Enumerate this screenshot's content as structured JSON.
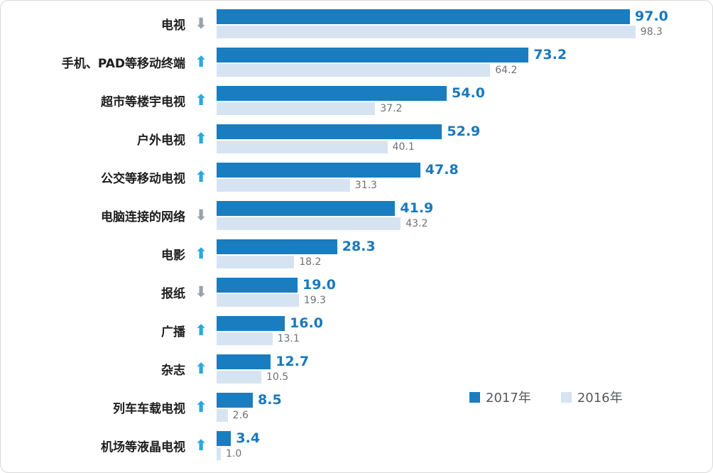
{
  "chart_data": {
    "type": "bar",
    "orientation": "horizontal",
    "title": "",
    "xlabel": "",
    "ylabel": "",
    "xlim": [
      0,
      100
    ],
    "grid": false,
    "legend": [
      "2017年",
      "2016年"
    ],
    "legend_position": "bottom-right",
    "categories": [
      "电视",
      "手机、PAD等移动终端",
      "超市等楼宇电视",
      "户外电视",
      "公交等移动电视",
      "电脑连接的网络",
      "电影",
      "报纸",
      "广播",
      "杂志",
      "列车车载电视",
      "机场等液晶电视"
    ],
    "series": [
      {
        "name": "2017年",
        "values": [
          97.0,
          73.2,
          54.0,
          52.9,
          47.8,
          41.9,
          28.3,
          19.0,
          16.0,
          12.7,
          8.5,
          3.4
        ]
      },
      {
        "name": "2016年",
        "values": [
          98.3,
          64.2,
          37.2,
          40.1,
          31.3,
          43.2,
          18.2,
          19.3,
          13.1,
          10.5,
          2.6,
          1.0
        ]
      }
    ],
    "trends": [
      "down",
      "up",
      "up",
      "up",
      "up",
      "down",
      "up",
      "down",
      "up",
      "up",
      "up",
      "up"
    ],
    "colors": {
      "bar_2017": "#1a7dc0",
      "bar_2016": "#d6e4f2",
      "value_2017_text": "#1878be",
      "value_2016_text": "#6d7075",
      "trend_up": "#2aa8df",
      "trend_down": "#9ba1a8"
    }
  }
}
